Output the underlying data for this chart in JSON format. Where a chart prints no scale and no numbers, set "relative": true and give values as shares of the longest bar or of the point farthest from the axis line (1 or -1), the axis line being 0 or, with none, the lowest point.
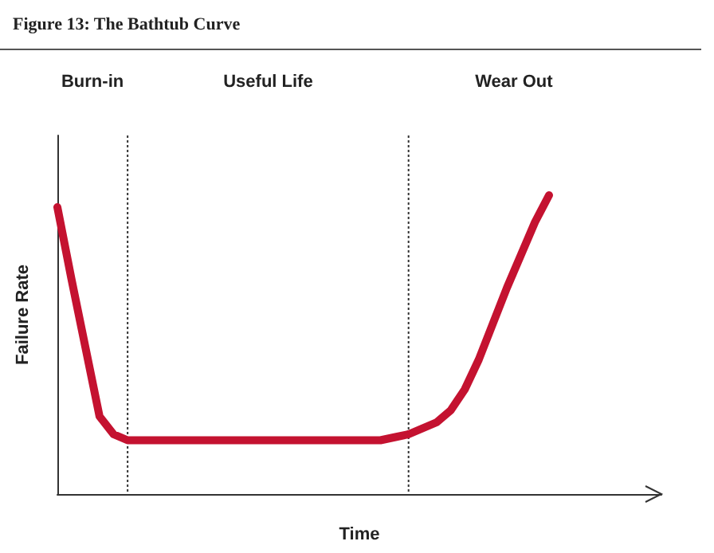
{
  "chart_data": {
    "type": "line",
    "title": "Figure 13: The Bathtub Curve",
    "xlabel": "Time",
    "ylabel": "Failure Rate",
    "relative": true,
    "categories": [
      null,
      null,
      null,
      null,
      null,
      null,
      null,
      null,
      null,
      null,
      null,
      null,
      null,
      null,
      null,
      null,
      null,
      null,
      null,
      null,
      null,
      null,
      null,
      null,
      null,
      null,
      null,
      null,
      null,
      null,
      null,
      null,
      null,
      null,
      null,
      null,
      null,
      null,
      null,
      null
    ],
    "series": [
      {
        "color": "#c41230",
        "values": [
          0.96,
          0.72,
          0.49,
          0.26,
          0.2,
          0.18,
          0.18,
          0.18,
          0.18,
          0.18,
          0.18,
          0.18,
          0.18,
          0.18,
          0.18,
          0.18,
          0.18,
          0.18,
          0.18,
          0.18,
          0.18,
          0.18,
          0.18,
          0.18,
          0.19,
          0.2,
          0.22,
          0.24,
          0.28,
          0.35,
          0.45,
          0.57,
          0.69,
          0.8,
          0.91,
          1.0,
          null,
          null,
          null,
          null
        ]
      }
    ],
    "annotations": [
      "Burn-in",
      "Useful Life",
      "Wear Out"
    ],
    "grid": false,
    "marker": "none",
    "line_style": "solid"
  }
}
